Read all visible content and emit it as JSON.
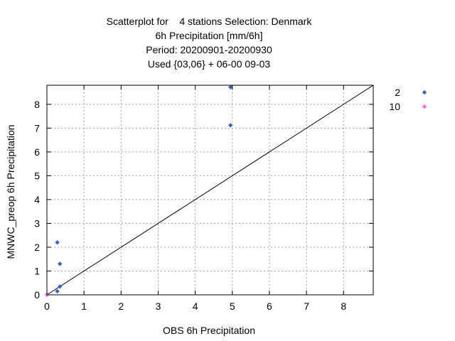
{
  "chart_data": {
    "type": "scatter",
    "title_lines": [
      "Scatterplot for    4 stations Selection: Denmark",
      "6h Precipitation [mm/6h]",
      "Period: 20200901-20200930",
      "Used {03,06} + 06-00 09-03"
    ],
    "xlabel": "OBS 6h Precipitation",
    "ylabel": "MNWC_preop 6h Precipitation",
    "xlim": [
      0,
      8.8
    ],
    "ylim": [
      0,
      8.8
    ],
    "xticks": [
      0,
      1,
      2,
      3,
      4,
      5,
      6,
      7,
      8
    ],
    "yticks": [
      0,
      1,
      2,
      3,
      4,
      5,
      6,
      7,
      8
    ],
    "grid": true,
    "legend_position": "right",
    "diagonal": true,
    "series": [
      {
        "name": "2",
        "color": "#3366cc",
        "marker": "diamond",
        "points": [
          [
            0.28,
            2.2
          ],
          [
            0.35,
            1.3
          ],
          [
            0.35,
            0.35
          ],
          [
            0.28,
            0.15
          ],
          [
            4.95,
            8.72
          ],
          [
            4.95,
            7.12
          ]
        ]
      },
      {
        "name": "10",
        "color": "#ff66ff",
        "marker": "diamond",
        "points": [
          [
            0.0,
            0.0
          ]
        ]
      }
    ]
  }
}
